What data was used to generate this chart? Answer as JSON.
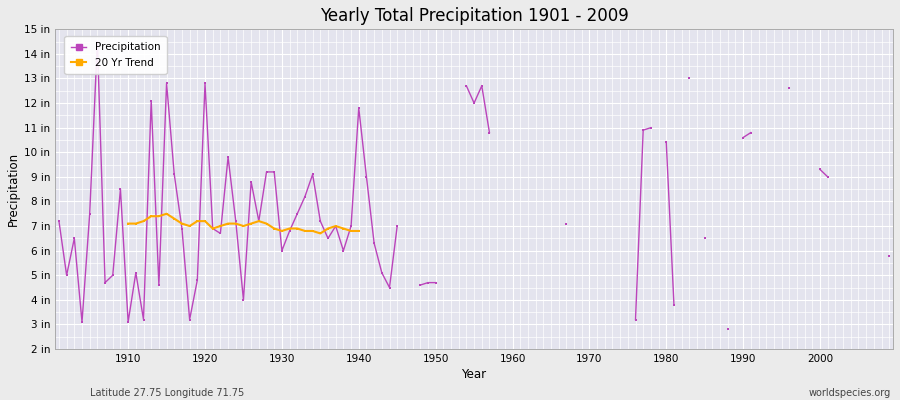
{
  "title": "Yearly Total Precipitation 1901 - 2009",
  "ylabel": "Precipitation",
  "xlabel": "Year",
  "footnote_left": "Latitude 27.75 Longitude 71.75",
  "footnote_right": "worldspecies.org",
  "line_color": "#bb44bb",
  "trend_color": "#ffaa00",
  "bg_color": "#ebebeb",
  "plot_bg": "#e4e4ee",
  "ylim": [
    2,
    15
  ],
  "yticks": [
    2,
    3,
    4,
    5,
    6,
    7,
    8,
    9,
    10,
    11,
    12,
    13,
    14,
    15
  ],
  "xticks": [
    1910,
    1920,
    1930,
    1940,
    1950,
    1960,
    1970,
    1980,
    1990,
    2000
  ],
  "years": [
    1901,
    1902,
    1903,
    1904,
    1905,
    1906,
    1907,
    1908,
    1909,
    1910,
    1911,
    1912,
    1913,
    1914,
    1915,
    1916,
    1917,
    1918,
    1919,
    1920,
    1921,
    1922,
    1923,
    1924,
    1925,
    1926,
    1927,
    1928,
    1929,
    1930,
    1931,
    1932,
    1933,
    1934,
    1935,
    1936,
    1937,
    1938,
    1939,
    1940,
    1941,
    1942,
    1943,
    1944,
    1945,
    1946,
    1947,
    1948,
    1949,
    1950,
    1951,
    1952,
    1953,
    1954,
    1955,
    1956,
    1957,
    1958,
    1959,
    1960,
    1961,
    1962,
    1963,
    1964,
    1965,
    1966,
    1967,
    1968,
    1969,
    1970,
    1971,
    1972,
    1973,
    1974,
    1975,
    1976,
    1977,
    1978,
    1979,
    1980,
    1981,
    1982,
    1983,
    1984,
    1985,
    1986,
    1987,
    1988,
    1989,
    1990,
    1991,
    1992,
    1993,
    1994,
    1995,
    1996,
    1997,
    1998,
    1999,
    2000,
    2001,
    2002,
    2003,
    2004,
    2005,
    2006,
    2007,
    2008,
    2009
  ],
  "precip": [
    7.2,
    5.0,
    6.5,
    3.1,
    7.5,
    14.5,
    4.7,
    5.0,
    8.5,
    3.1,
    5.1,
    3.2,
    12.1,
    4.6,
    12.8,
    9.1,
    6.9,
    3.2,
    4.8,
    12.8,
    6.9,
    6.7,
    9.8,
    7.2,
    4.0,
    8.8,
    7.2,
    9.2,
    9.2,
    6.0,
    6.8,
    7.5,
    8.2,
    9.1,
    7.2,
    6.5,
    7.0,
    6.0,
    7.0,
    11.8,
    9.0,
    6.3,
    5.1,
    4.5,
    7.0,
    null,
    null,
    4.6,
    4.7,
    4.7,
    null,
    null,
    null,
    12.7,
    12.0,
    12.7,
    10.8,
    null,
    null,
    null,
    null,
    null,
    null,
    null,
    null,
    null,
    7.1,
    null,
    null,
    null,
    null,
    null,
    null,
    null,
    null,
    3.2,
    10.9,
    11.0,
    null,
    10.4,
    3.8,
    null,
    13.0,
    null,
    6.5,
    null,
    null,
    2.8,
    null,
    10.6,
    10.8,
    null,
    null,
    null,
    null,
    12.6,
    null,
    null,
    null,
    9.3,
    9.0,
    null,
    null,
    null,
    null,
    null,
    null,
    null,
    5.8
  ],
  "trend_years": [
    1910,
    1911,
    1912,
    1913,
    1914,
    1915,
    1916,
    1917,
    1918,
    1919,
    1920,
    1921,
    1922,
    1923,
    1924,
    1925,
    1926,
    1927,
    1928,
    1929,
    1930,
    1931,
    1932,
    1933,
    1934,
    1935,
    1936,
    1937,
    1938,
    1939,
    1940
  ],
  "trend_vals": [
    7.1,
    7.1,
    7.2,
    7.4,
    7.4,
    7.5,
    7.3,
    7.1,
    7.0,
    7.2,
    7.2,
    6.9,
    7.0,
    7.1,
    7.1,
    7.0,
    7.1,
    7.2,
    7.1,
    6.9,
    6.8,
    6.9,
    6.9,
    6.8,
    6.8,
    6.7,
    6.9,
    7.0,
    6.9,
    6.8,
    6.8
  ]
}
